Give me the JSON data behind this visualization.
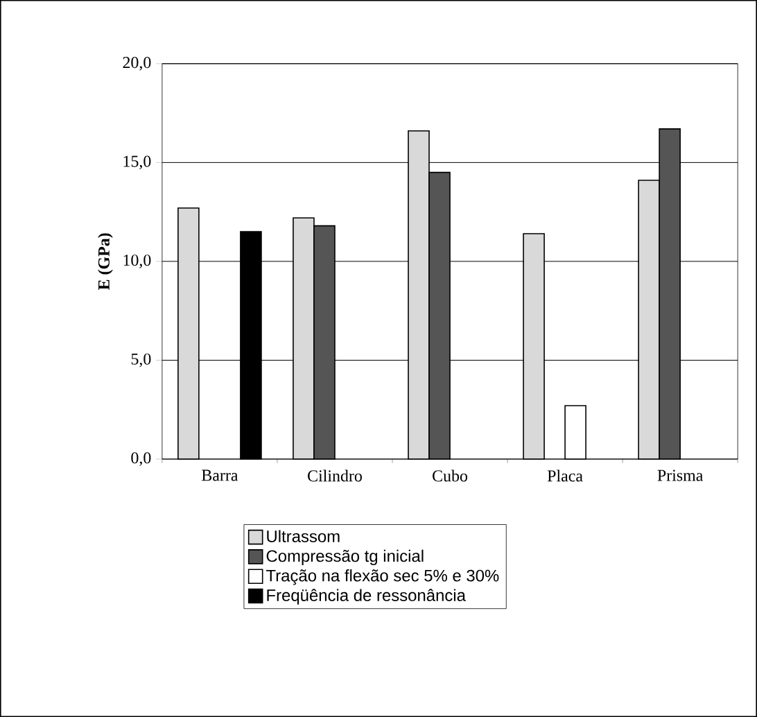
{
  "chart_data": {
    "type": "bar",
    "ylabel": "E (GPa)",
    "categories": [
      "Barra",
      "Cilindro",
      "Cubo",
      "Placa",
      "Prisma"
    ],
    "series": [
      {
        "name": "Ultrassom",
        "color": "#d9d9d9",
        "values": [
          12.7,
          12.2,
          16.6,
          11.4,
          14.1
        ]
      },
      {
        "name": "Compressão tg inicial",
        "color": "#555555",
        "values": [
          null,
          11.8,
          14.5,
          null,
          16.7
        ]
      },
      {
        "name": "Tração na flexão sec 5% e 30%",
        "color": "#ffffff",
        "values": [
          null,
          null,
          null,
          2.7,
          null
        ]
      },
      {
        "name": "Freqüência de ressonância",
        "color": "#000000",
        "values": [
          11.5,
          null,
          null,
          null,
          null
        ]
      }
    ],
    "ylim": [
      0,
      20
    ],
    "yticks": [
      {
        "value": 0,
        "label": "0,0"
      },
      {
        "value": 5,
        "label": "5,0"
      },
      {
        "value": 10,
        "label": "10,0"
      },
      {
        "value": 15,
        "label": "15,0"
      },
      {
        "value": 20,
        "label": "20,0"
      }
    ],
    "grid": "y",
    "legend": "bottom"
  }
}
